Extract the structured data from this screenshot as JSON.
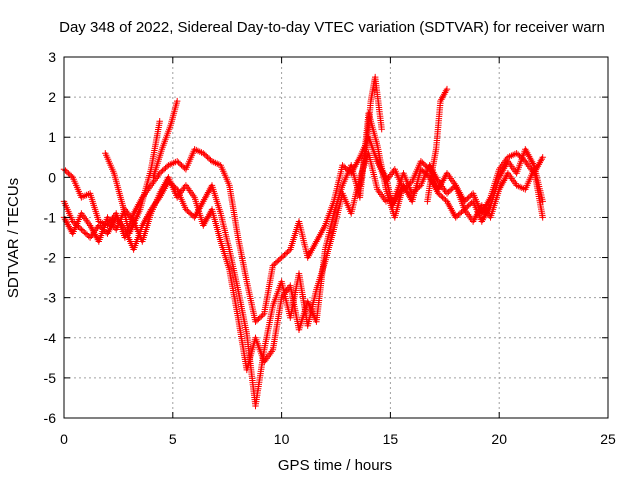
{
  "chart_data": {
    "type": "scatter",
    "title": "Day 348 of 2022, Sidereal Day-to-day VTEC variation (SDTVAR) for receiver warn",
    "xlabel": "GPS time / hours",
    "ylabel": "SDTVAR / TECUs",
    "xlim": [
      0,
      25
    ],
    "ylim": [
      -6,
      3
    ],
    "xticks": [
      "0",
      "5",
      "10",
      "15",
      "20",
      "25"
    ],
    "yticks": [
      "-6",
      "-5",
      "-4",
      "-3",
      "-2",
      "-1",
      "0",
      "1",
      "2",
      "3"
    ],
    "grid": true,
    "legend": "none",
    "marker": "plus",
    "series": [
      {
        "color": "#ff0000",
        "tracks": [
          {
            "x": [
              0.0,
              0.4,
              0.8,
              1.2,
              1.6,
              2.0,
              2.4,
              2.8,
              3.2,
              3.6,
              4.0,
              4.4,
              4.8,
              5.2,
              5.6,
              6.0,
              6.4,
              6.8,
              7.2,
              7.6,
              8.0,
              8.4,
              8.8,
              9.2,
              9.6,
              10.0,
              10.4,
              10.8,
              11.2,
              11.6,
              12.0,
              12.4,
              12.8,
              13.2,
              13.6,
              14.0,
              14.4,
              14.8,
              15.2,
              15.6,
              16.0,
              16.4,
              16.8,
              17.2,
              17.6,
              18.0,
              18.4,
              18.8,
              19.2,
              19.6,
              20.0,
              20.4,
              20.8,
              21.2,
              21.6,
              22.0
            ],
            "y": [
              0.2,
              0.0,
              -0.5,
              -0.4,
              -1.1,
              -1.2,
              -0.9,
              -1.5,
              -0.9,
              -0.5,
              -0.2,
              0.1,
              0.3,
              0.4,
              0.2,
              0.7,
              0.6,
              0.4,
              0.3,
              -0.2,
              -1.5,
              -2.6,
              -3.6,
              -3.4,
              -2.2,
              -2.0,
              -1.8,
              -1.1,
              -2.0,
              -1.6,
              -1.2,
              -0.6,
              0.3,
              0.1,
              0.5,
              1.0,
              0.4,
              -0.1,
              0.2,
              -0.3,
              -0.1,
              0.4,
              0.2,
              -0.3,
              0.1,
              -0.2,
              -0.6,
              -0.4,
              -0.9,
              -0.5,
              0.2,
              0.5,
              0.6,
              0.4,
              0.1,
              0.5
            ]
          },
          {
            "x": [
              0.0,
              0.4,
              0.8,
              1.2,
              1.6,
              2.0,
              2.4,
              2.8,
              3.2,
              3.6,
              4.0,
              4.4,
              4.8,
              5.2,
              5.6,
              6.0,
              6.4,
              6.8,
              7.2,
              7.6,
              8.0,
              8.4,
              8.8,
              9.2,
              9.6,
              10.0,
              10.4,
              10.8,
              11.2,
              11.6,
              12.0,
              12.4,
              12.8,
              13.2,
              13.6,
              14.0,
              14.4,
              14.8,
              15.2,
              15.6,
              16.0,
              16.4,
              16.8,
              17.2,
              17.6,
              18.0,
              18.4,
              18.8,
              19.2,
              19.6,
              20.0,
              20.4,
              20.8,
              21.2,
              21.6,
              22.0
            ],
            "y": [
              -0.6,
              -1.1,
              -1.3,
              -1.5,
              -1.2,
              -1.4,
              -1.0,
              -1.3,
              -1.8,
              -1.2,
              -0.8,
              -0.5,
              -0.1,
              -0.3,
              -0.8,
              -1.0,
              -0.6,
              -0.2,
              -0.9,
              -1.8,
              -2.8,
              -3.9,
              -5.7,
              -4.3,
              -3.2,
              -2.6,
              -3.5,
              -2.4,
              -3.7,
              -2.8,
              -2.1,
              -1.3,
              -0.4,
              -0.9,
              0.0,
              0.6,
              -0.3,
              -0.6,
              -0.5,
              0.1,
              -0.4,
              -0.2,
              0.3,
              -0.1,
              -0.4,
              -0.2,
              -0.8,
              -1.1,
              -0.7,
              -1.0,
              -0.3,
              0.1,
              -0.2,
              -0.3,
              0.2,
              -1.0
            ]
          },
          {
            "x": [
              0.0,
              0.4,
              0.8,
              1.2,
              1.6,
              2.0,
              2.4,
              2.8,
              3.2,
              3.6,
              4.0,
              4.4,
              4.8,
              5.2,
              5.6,
              6.0,
              6.4,
              6.8,
              7.2,
              7.6,
              8.0,
              8.4,
              8.8,
              9.2,
              9.6,
              10.0,
              10.4,
              10.8,
              11.2,
              11.6,
              12.0,
              12.4,
              12.8,
              13.2,
              13.6,
              14.0,
              14.4,
              14.8,
              15.2,
              15.6,
              16.0,
              16.4,
              16.8,
              17.2,
              17.6,
              18.0,
              18.4,
              18.8,
              19.2,
              19.6,
              20.0,
              20.4,
              20.8,
              21.2,
              21.6,
              22.0
            ],
            "y": [
              -1.0,
              -1.4,
              -0.9,
              -1.2,
              -1.6,
              -1.0,
              -1.3,
              -0.8,
              -1.1,
              -1.6,
              -0.9,
              -0.4,
              0.0,
              -0.5,
              -0.2,
              -0.5,
              -1.2,
              -0.8,
              -1.6,
              -2.3,
              -3.5,
              -4.8,
              -4.0,
              -4.6,
              -4.3,
              -3.0,
              -2.7,
              -3.8,
              -3.1,
              -3.6,
              -1.8,
              -0.9,
              -0.2,
              0.3,
              -0.5,
              1.6,
              0.8,
              -0.3,
              -1.0,
              -0.2,
              -0.6,
              0.2,
              0.0,
              -0.4,
              -0.6,
              -1.0,
              -0.8,
              -0.6,
              -1.1,
              -0.7,
              0.0,
              0.4,
              0.1,
              0.7,
              0.3,
              -0.6
            ]
          },
          {
            "x": [
              1.9,
              2.3,
              2.7,
              3.0,
              3.5,
              4.0,
              4.4
            ],
            "y": [
              0.6,
              0.1,
              -0.7,
              -1.4,
              -0.8,
              0.2,
              1.4
            ]
          },
          {
            "x": [
              4.1,
              4.5,
              4.9,
              5.2
            ],
            "y": [
              0.0,
              0.7,
              1.3,
              1.9
            ]
          },
          {
            "x": [
              13.6,
              13.9,
              14.1,
              14.3,
              14.6
            ],
            "y": [
              -0.2,
              0.7,
              1.9,
              2.5,
              1.2
            ]
          },
          {
            "x": [
              16.7,
              16.9,
              17.1,
              17.3,
              17.6
            ],
            "y": [
              -0.6,
              0.1,
              0.7,
              1.9,
              2.2
            ]
          },
          {
            "x": [
              14.4,
              14.8,
              15.1,
              15.5
            ],
            "y": [
              0.4,
              0.0,
              -0.7,
              -0.3
            ]
          }
        ]
      }
    ]
  }
}
